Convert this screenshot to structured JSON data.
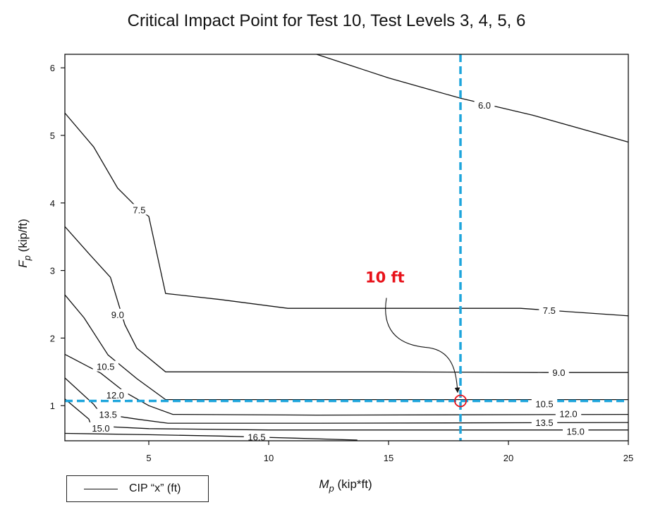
{
  "chart_data": {
    "type": "contour",
    "title": "Critical Impact Point for Test 10, Test Levels 3, 4, 5, 6",
    "xlabel": {
      "main": "M",
      "sub": "p",
      "unit": " (kip*ft)"
    },
    "ylabel": {
      "main": "F",
      "sub": "p",
      "unit": " (kip/ft)"
    },
    "xlim": [
      1.5,
      25
    ],
    "ylim": [
      0.48,
      6.2
    ],
    "x_ticks": [
      5,
      10,
      15,
      20,
      25
    ],
    "y_ticks": [
      1,
      2,
      3,
      4,
      5,
      6
    ],
    "legend": {
      "label": "CIP “x” (ft)",
      "placement": "bottom-left"
    },
    "contours": [
      {
        "level": "6.0",
        "points": [
          [
            12.0,
            6.2
          ],
          [
            15.0,
            5.85
          ],
          [
            18.0,
            5.55
          ],
          [
            21.0,
            5.3
          ],
          [
            25.0,
            4.9
          ]
        ],
        "labels": [
          [
            19.0,
            5.45
          ]
        ]
      },
      {
        "level": "7.5",
        "points": [
          [
            1.5,
            5.33
          ],
          [
            2.7,
            4.83
          ],
          [
            3.7,
            4.22
          ],
          [
            4.6,
            3.9
          ],
          [
            5.0,
            3.8
          ],
          [
            5.7,
            2.66
          ],
          [
            8.0,
            2.57
          ],
          [
            10.8,
            2.44
          ],
          [
            15.0,
            2.44
          ],
          [
            20.5,
            2.44
          ],
          [
            25.0,
            2.33
          ]
        ],
        "labels": [
          [
            4.6,
            3.9
          ],
          [
            21.7,
            2.41
          ]
        ]
      },
      {
        "level": "9.0",
        "points": [
          [
            1.5,
            3.65
          ],
          [
            2.5,
            3.25
          ],
          [
            3.4,
            2.9
          ],
          [
            4.0,
            2.2
          ],
          [
            4.5,
            1.85
          ],
          [
            5.7,
            1.5
          ],
          [
            15.0,
            1.5
          ],
          [
            21.5,
            1.49
          ],
          [
            25.0,
            1.49
          ]
        ],
        "labels": [
          [
            3.7,
            2.35
          ],
          [
            22.1,
            1.49
          ]
        ]
      },
      {
        "level": "10.5",
        "points": [
          [
            1.5,
            2.64
          ],
          [
            2.3,
            2.3
          ],
          [
            3.3,
            1.75
          ],
          [
            4.5,
            1.4
          ],
          [
            5.7,
            1.09
          ],
          [
            12.0,
            1.09
          ],
          [
            25.0,
            1.09
          ]
        ],
        "labels": [
          [
            3.2,
            1.58
          ],
          [
            21.5,
            1.03
          ]
        ]
      },
      {
        "level": "12.0",
        "points": [
          [
            1.5,
            1.76
          ],
          [
            3.0,
            1.48
          ],
          [
            4.0,
            1.2
          ],
          [
            5.0,
            1.0
          ],
          [
            6.0,
            0.87
          ],
          [
            12.0,
            0.86
          ],
          [
            25.0,
            0.87
          ]
        ],
        "labels": [
          [
            3.6,
            1.16
          ],
          [
            22.5,
            0.88
          ]
        ]
      },
      {
        "level": "13.5",
        "points": [
          [
            1.5,
            1.41
          ],
          [
            2.7,
            1.02
          ],
          [
            3.0,
            0.88
          ],
          [
            4.5,
            0.8
          ],
          [
            5.8,
            0.74
          ],
          [
            12.0,
            0.74
          ],
          [
            25.0,
            0.75
          ]
        ],
        "labels": [
          [
            3.3,
            0.87
          ],
          [
            21.5,
            0.75
          ]
        ]
      },
      {
        "level": "15.0",
        "points": [
          [
            1.5,
            1.1
          ],
          [
            2.5,
            0.8
          ],
          [
            2.6,
            0.7
          ],
          [
            5.0,
            0.66
          ],
          [
            10.0,
            0.64
          ],
          [
            18.0,
            0.64
          ],
          [
            25.0,
            0.64
          ]
        ],
        "labels": [
          [
            3.0,
            0.67
          ],
          [
            22.8,
            0.62
          ]
        ]
      },
      {
        "level": "16.5",
        "points": [
          [
            1.5,
            0.59
          ],
          [
            5.0,
            0.57
          ],
          [
            8.0,
            0.55
          ],
          [
            11.0,
            0.52
          ],
          [
            13.7,
            0.49
          ]
        ],
        "labels": [
          [
            9.5,
            0.54
          ]
        ]
      }
    ],
    "reference_lines": {
      "x": 18,
      "y": 1.07,
      "color": "#1ea5dc"
    },
    "annotation": {
      "text": "10 ft",
      "point": [
        18.0,
        1.07
      ],
      "color": "#e8121a"
    }
  }
}
